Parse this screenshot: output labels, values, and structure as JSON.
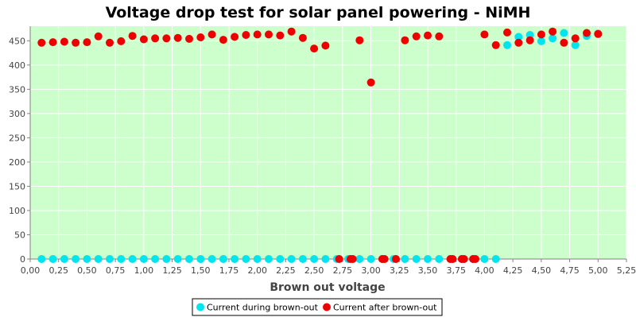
{
  "chart_data": {
    "type": "scatter",
    "title": "Voltage drop test for solar panel powering -  NiMH",
    "xlabel": "Brown out voltage",
    "ylabel": "",
    "xlim": [
      0.0,
      5.25
    ],
    "ylim": [
      0,
      480
    ],
    "x_ticks": [
      "0,00",
      "0,25",
      "0,50",
      "0,75",
      "1,00",
      "1,25",
      "1,50",
      "1,75",
      "2,00",
      "2,25",
      "2,50",
      "2,75",
      "3,00",
      "3,25",
      "3,50",
      "3,75",
      "4,00",
      "4,25",
      "4,50",
      "4,75",
      "5,00",
      "5,25"
    ],
    "y_ticks": [
      "0",
      "50",
      "100",
      "150",
      "200",
      "250",
      "300",
      "350",
      "400",
      "450"
    ],
    "y_tick_values": [
      0,
      50,
      100,
      150,
      200,
      250,
      300,
      350,
      400,
      450
    ],
    "grid": true,
    "background": "#ccffcc",
    "grid_color": "#ffffff",
    "legend_position": "bottom-center",
    "series": [
      {
        "name": "Current during brown-out",
        "color": "#00e5ee",
        "points": [
          [
            0.1,
            0
          ],
          [
            0.2,
            0
          ],
          [
            0.3,
            0
          ],
          [
            0.4,
            0
          ],
          [
            0.5,
            0
          ],
          [
            0.6,
            0
          ],
          [
            0.7,
            0
          ],
          [
            0.8,
            0
          ],
          [
            0.9,
            0
          ],
          [
            1.0,
            0
          ],
          [
            1.1,
            0
          ],
          [
            1.2,
            0
          ],
          [
            1.3,
            0
          ],
          [
            1.4,
            0
          ],
          [
            1.5,
            0
          ],
          [
            1.6,
            0
          ],
          [
            1.7,
            0
          ],
          [
            1.8,
            0
          ],
          [
            1.9,
            0
          ],
          [
            2.0,
            0
          ],
          [
            2.1,
            0
          ],
          [
            2.2,
            0
          ],
          [
            2.3,
            0
          ],
          [
            2.4,
            0
          ],
          [
            2.5,
            0
          ],
          [
            2.6,
            0
          ],
          [
            2.7,
            0
          ],
          [
            2.8,
            0
          ],
          [
            2.9,
            0
          ],
          [
            3.0,
            0
          ],
          [
            3.1,
            0
          ],
          [
            3.2,
            0
          ],
          [
            3.3,
            0
          ],
          [
            3.4,
            0
          ],
          [
            3.5,
            0
          ],
          [
            3.6,
            0
          ],
          [
            3.7,
            0
          ],
          [
            3.8,
            0
          ],
          [
            3.9,
            0
          ],
          [
            4.0,
            0
          ],
          [
            4.1,
            0
          ],
          [
            4.2,
            441
          ],
          [
            4.3,
            458
          ],
          [
            4.4,
            462
          ],
          [
            4.5,
            449
          ],
          [
            4.6,
            455
          ],
          [
            4.7,
            466
          ],
          [
            4.8,
            441
          ],
          [
            4.9,
            460
          ],
          [
            5.0,
            465
          ]
        ]
      },
      {
        "name": "Current after brown-out",
        "color": "#ee0000",
        "points": [
          [
            0.1,
            446
          ],
          [
            0.2,
            447
          ],
          [
            0.3,
            448
          ],
          [
            0.4,
            446
          ],
          [
            0.5,
            447
          ],
          [
            0.6,
            459
          ],
          [
            0.7,
            446
          ],
          [
            0.8,
            449
          ],
          [
            0.9,
            460
          ],
          [
            1.0,
            453
          ],
          [
            1.1,
            455
          ],
          [
            1.2,
            455
          ],
          [
            1.3,
            456
          ],
          [
            1.4,
            454
          ],
          [
            1.5,
            457
          ],
          [
            1.6,
            463
          ],
          [
            1.7,
            452
          ],
          [
            1.8,
            458
          ],
          [
            1.9,
            462
          ],
          [
            2.0,
            463
          ],
          [
            2.1,
            463
          ],
          [
            2.2,
            461
          ],
          [
            2.3,
            469
          ],
          [
            2.4,
            456
          ],
          [
            2.5,
            434
          ],
          [
            2.6,
            440
          ],
          [
            2.9,
            451
          ],
          [
            3.0,
            364
          ],
          [
            3.3,
            451
          ],
          [
            3.4,
            459
          ],
          [
            3.5,
            461
          ],
          [
            3.6,
            459
          ],
          [
            4.0,
            463
          ],
          [
            4.1,
            441
          ],
          [
            4.2,
            467
          ],
          [
            4.3,
            446
          ],
          [
            4.4,
            451
          ],
          [
            4.5,
            463
          ],
          [
            4.6,
            469
          ],
          [
            4.7,
            446
          ],
          [
            4.8,
            455
          ],
          [
            4.9,
            466
          ],
          [
            5.0,
            464
          ],
          [
            2.72,
            0
          ],
          [
            2.82,
            0
          ],
          [
            2.84,
            0
          ],
          [
            3.1,
            0
          ],
          [
            3.12,
            0
          ],
          [
            3.22,
            0
          ],
          [
            3.7,
            0
          ],
          [
            3.72,
            0
          ],
          [
            3.8,
            0
          ],
          [
            3.82,
            0
          ],
          [
            3.9,
            0
          ],
          [
            3.92,
            0
          ]
        ]
      }
    ]
  }
}
